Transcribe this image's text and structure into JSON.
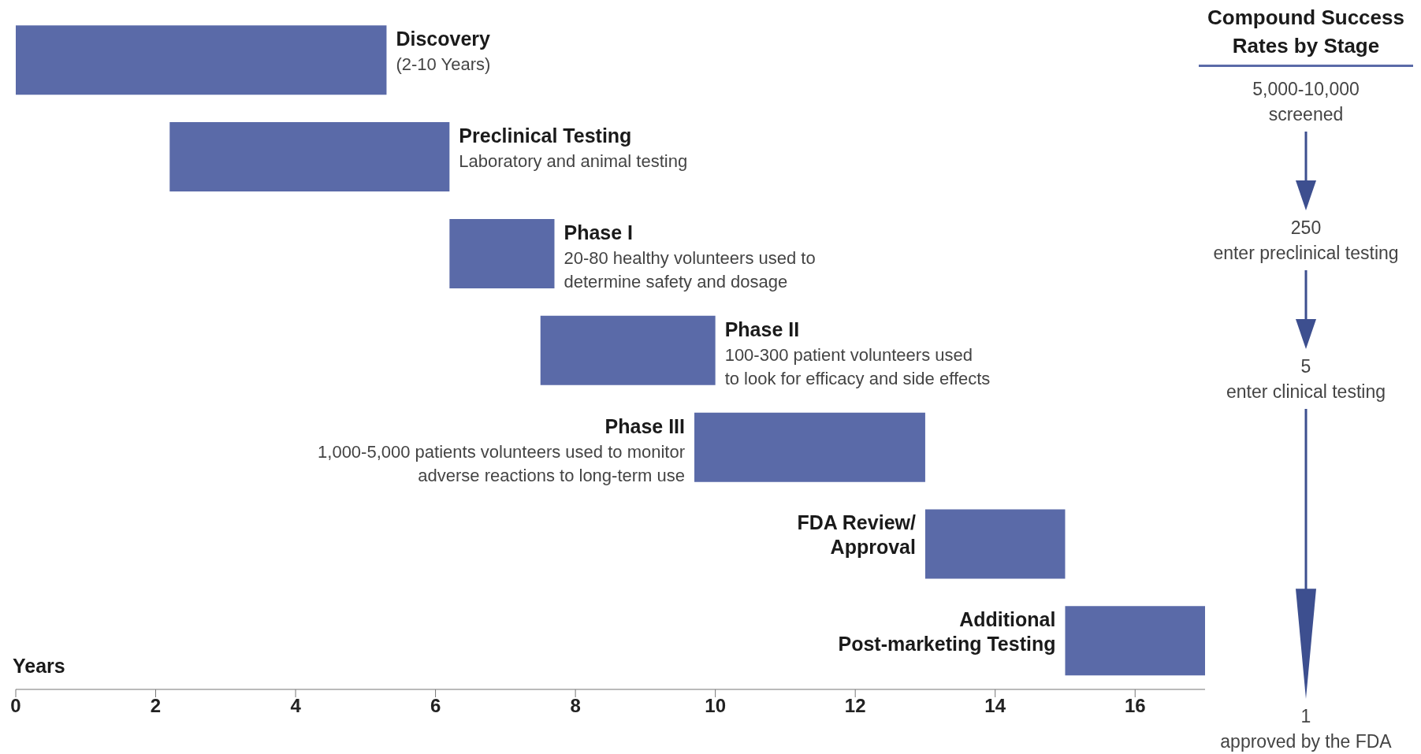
{
  "chart_data": [
    {
      "type": "bar",
      "orientation": "horizontal",
      "categories": [
        "Discovery",
        "Preclinical Testing",
        "Phase I",
        "Phase II",
        "Phase III",
        "FDA Review/\nApproval",
        "Additional\nPost-marketing Testing"
      ],
      "base": [
        0,
        2.2,
        6.2,
        7.5,
        9.7,
        13,
        15
      ],
      "values": [
        5.3,
        4,
        1.5,
        2.5,
        3.3,
        2,
        2
      ],
      "color": "#5a6aa8",
      "xlim": [
        0,
        17
      ],
      "xticks": [
        0,
        2,
        4,
        6,
        8,
        10,
        12,
        14,
        16
      ],
      "xlabel": "Years",
      "tick_labels": "x",
      "annotations": [
        {
          "text": "(2-10 Years)",
          "x": 5.3,
          "y": "Discovery"
        },
        {
          "text": "Laboratory and animal testing",
          "x": 6.2,
          "y": "Preclinical Testing"
        },
        {
          "text": "20-80 healthy volunteers used to\ndetermine safety and dosage",
          "x": 7.7,
          "y": "Phase I"
        },
        {
          "text": "100-300 patient volunteers used\nto look for efficacy and side effects",
          "x": 10,
          "y": "Phase II"
        },
        {
          "text": "1,000-5,000 patients volunteers used to monitor\nadverse reactions to long-term use",
          "x": 9.7,
          "y": "Phase III"
        }
      ]
    },
    {
      "type": "other",
      "title": "Compound Success Rates by Stage",
      "annotations": [
        "5,000-10,000\nscreened",
        "250\nenter preclinical testing",
        "5\nenter clinical testing",
        "1\napproved by the FDA"
      ]
    }
  ]
}
